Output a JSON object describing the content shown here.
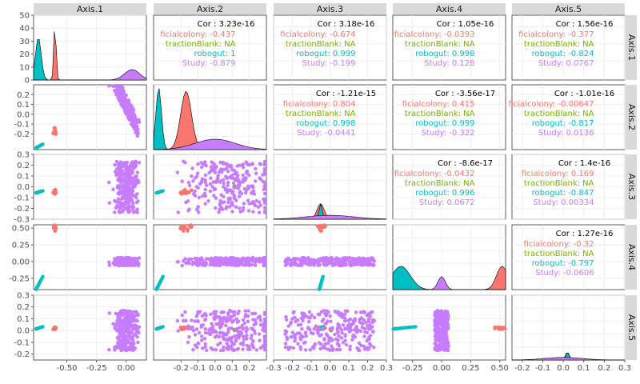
{
  "chart_data": {
    "type": "scatter",
    "title": "",
    "variables": [
      "Axis.1",
      "Axis.2",
      "Axis.3",
      "Axis.4",
      "Axis.5"
    ],
    "groups": [
      {
        "name": "ficialcolony",
        "color": "#f8766d"
      },
      {
        "name": "tractionBlank",
        "color": "#7cae00"
      },
      {
        "name": "robogut",
        "color": "#00bfc4"
      },
      {
        "name": "Study",
        "color": "#c77cff"
      }
    ],
    "axes": {
      "Axis.1": {
        "range": [
          -0.78,
          0.17
        ],
        "ticks": [
          -0.5,
          -0.25,
          0.0
        ],
        "tick_labels": [
          "-0.50",
          "-0.25",
          "0.00"
        ]
      },
      "Axis.2": {
        "range": [
          -0.36,
          0.3
        ],
        "ticks": [
          -0.2,
          -0.1,
          0.0,
          0.1,
          0.2
        ],
        "tick_labels": [
          "-0.2",
          "-0.1",
          "0.0",
          "0.1",
          "0.2"
        ]
      },
      "Axis.3": {
        "range": [
          -0.3,
          0.3
        ],
        "ticks": [
          -0.3,
          -0.2,
          -0.1,
          0.0,
          0.1,
          0.2,
          0.3
        ],
        "tick_labels": [
          "-0.3",
          "-0.2",
          "-0.1",
          "0.0",
          "0.1",
          "0.2",
          "0.3"
        ]
      },
      "Axis.4": {
        "range": [
          -0.42,
          0.55
        ],
        "ticks": [
          -0.25,
          0.0,
          0.25,
          0.5
        ],
        "tick_labels": [
          "-0.25",
          "0.00",
          "0.25",
          "0.50"
        ]
      },
      "Axis.5": {
        "range": [
          -0.25,
          0.3
        ],
        "ticks": [
          -0.2,
          -0.1,
          0.0,
          0.1,
          0.2,
          0.3
        ],
        "tick_labels": [
          "-0.2",
          "-0.1",
          "0.0",
          "0.1",
          "0.2",
          "0.3"
        ]
      }
    },
    "density_ylim": [
      0,
      50
    ],
    "density_yticks": [
      0,
      10,
      20,
      30,
      40,
      50
    ],
    "correlations": [
      {
        "row": 1,
        "col": 2,
        "overall": "Cor : 3.23e-16",
        "by_group": [
          "ficialcolony: -0.437",
          "tractionBlank: NA",
          "robogut: 1",
          "Study: -0.879"
        ]
      },
      {
        "row": 1,
        "col": 3,
        "overall": "Cor : 3.18e-16",
        "by_group": [
          "ficialcolony: -0.674",
          "tractionBlank: NA",
          "robogut: 0.999",
          "Study: -0.199"
        ]
      },
      {
        "row": 1,
        "col": 4,
        "overall": "Cor : 1.05e-16",
        "by_group": [
          "ficialcolony: -0.0393",
          "tractionBlank: NA",
          "robogut: 0.998",
          "Study: 0.128"
        ]
      },
      {
        "row": 1,
        "col": 5,
        "overall": "Cor : 1.56e-16",
        "by_group": [
          "ficialcolony: -0.377",
          "tractionBlank: NA",
          "robogut: -0.824",
          "Study: 0.0767"
        ]
      },
      {
        "row": 2,
        "col": 3,
        "overall": "Cor : -1.21e-15",
        "by_group": [
          "ficialcolony: 0.804",
          "tractionBlank: NA",
          "robogut: 0.998",
          "Study: -0.0441"
        ]
      },
      {
        "row": 2,
        "col": 4,
        "overall": "Cor : -3.56e-17",
        "by_group": [
          "ficialcolony: 0.415",
          "tractionBlank: NA",
          "robogut: 0.999",
          "Study: -0.322"
        ]
      },
      {
        "row": 2,
        "col": 5,
        "overall": "Cor : -1.01e-16",
        "by_group": [
          "ficialcolony: -0.00647",
          "tractionBlank: NA",
          "robogut: -0.817",
          "Study: 0.0136"
        ]
      },
      {
        "row": 3,
        "col": 4,
        "overall": "Cor : -8.6e-17",
        "by_group": [
          "ficialcolony: -0.0432",
          "tractionBlank: NA",
          "robogut: 0.996",
          "Study: 0.0672"
        ]
      },
      {
        "row": 3,
        "col": 5,
        "overall": "Cor : 1.4e-16",
        "by_group": [
          "ficialcolony: 0.169",
          "tractionBlank: NA",
          "robogut: -0.847",
          "Study: 0.00334"
        ]
      },
      {
        "row": 4,
        "col": 5,
        "overall": "Cor : 1.27e-16",
        "by_group": [
          "ficialcolony: -0.32",
          "tractionBlank: NA",
          "robogut: -0.797",
          "Study: -0.0606"
        ]
      }
    ],
    "group_centers": [
      {
        "group": "ficialcolony",
        "values": [
          -0.6,
          -0.17,
          -0.05,
          0.52,
          0.02
        ]
      },
      {
        "group": "tractionBlank",
        "values": [
          0.0,
          0.11,
          0.0,
          0.0,
          0.0
        ]
      },
      {
        "group": "robogut",
        "values": [
          -0.74,
          -0.33,
          -0.05,
          -0.35,
          0.02
        ]
      },
      {
        "group": "Study",
        "values": [
          0.05,
          0.0,
          0.0,
          0.0,
          0.0
        ]
      }
    ],
    "group_spread": [
      {
        "group": "ficialcolony",
        "values": [
          0.006,
          0.02,
          0.012,
          0.03,
          0.006
        ]
      },
      {
        "group": "tractionBlank",
        "values": [
          0.005,
          0.005,
          0.005,
          0.005,
          0.005
        ]
      },
      {
        "group": "robogut",
        "values": [
          0.015,
          0.01,
          0.005,
          0.05,
          0.005
        ]
      },
      {
        "group": "Study",
        "values": [
          0.07,
          0.13,
          0.14,
          0.035,
          0.1
        ]
      }
    ],
    "grid": true,
    "legend": "none"
  }
}
